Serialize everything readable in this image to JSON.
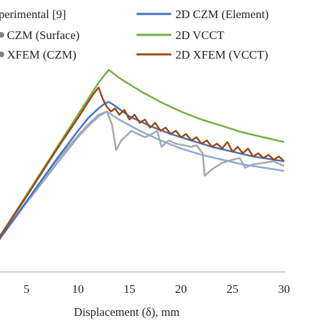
{
  "chart_data": {
    "type": "line",
    "title": "",
    "xlabel": "Displacement (δ), mm",
    "ylabel": "",
    "xlim": [
      0,
      30
    ],
    "x_ticks": [
      5,
      10,
      15,
      20,
      25,
      30
    ],
    "grid": false,
    "legend_position": "top",
    "series": [
      {
        "name": "perimental [9]",
        "color": "#a6a6a6",
        "points": [
          [
            0,
            0.0
          ],
          [
            2,
            0.17
          ],
          [
            5,
            0.44
          ],
          [
            8,
            0.7
          ],
          [
            10,
            0.85
          ],
          [
            11,
            0.92
          ],
          [
            12,
            0.98
          ],
          [
            12.8,
            1.0
          ],
          [
            13.3,
            0.92
          ],
          [
            13.7,
            0.76
          ],
          [
            14.2,
            0.82
          ],
          [
            15.2,
            0.88
          ],
          [
            15.8,
            0.86
          ],
          [
            16.5,
            0.84
          ],
          [
            17.2,
            0.86
          ],
          [
            17.7,
            0.88
          ],
          [
            18.1,
            0.78
          ],
          [
            18.8,
            0.82
          ],
          [
            19.5,
            0.8
          ],
          [
            20.3,
            0.79
          ],
          [
            21,
            0.78
          ],
          [
            21.5,
            0.79
          ],
          [
            22.1,
            0.74
          ],
          [
            22.3,
            0.6
          ],
          [
            23,
            0.64
          ],
          [
            24,
            0.68
          ],
          [
            25,
            0.7
          ],
          [
            25.7,
            0.71
          ],
          [
            26.2,
            0.65
          ],
          [
            27,
            0.67
          ],
          [
            28,
            0.68
          ],
          [
            29,
            0.69
          ],
          [
            30,
            0.66
          ]
        ]
      },
      {
        "name": "CZM (Surface)",
        "color": "#f0c02c",
        "dashed": true,
        "points": [
          [
            0,
            0.0
          ],
          [
            2,
            0.17
          ],
          [
            5,
            0.43
          ],
          [
            8,
            0.68
          ],
          [
            10,
            0.84
          ],
          [
            11,
            0.91
          ],
          [
            12,
            0.97
          ],
          [
            12.8,
            1.0
          ],
          [
            14,
            0.95
          ],
          [
            16,
            0.88
          ],
          [
            18,
            0.82
          ],
          [
            20,
            0.77
          ],
          [
            22,
            0.73
          ],
          [
            24,
            0.7
          ],
          [
            26,
            0.67
          ],
          [
            28,
            0.65
          ],
          [
            30,
            0.63
          ]
        ]
      },
      {
        "name": "XFEM (CZM)",
        "color": "#8eaadb",
        "points": [
          [
            0,
            0.0
          ],
          [
            2,
            0.17
          ],
          [
            5,
            0.43
          ],
          [
            8,
            0.68
          ],
          [
            10,
            0.84
          ],
          [
            11,
            0.91
          ],
          [
            12,
            0.97
          ],
          [
            12.8,
            1.0
          ],
          [
            14,
            0.95
          ],
          [
            16,
            0.88
          ],
          [
            18,
            0.82
          ],
          [
            20,
            0.77
          ],
          [
            22,
            0.73
          ],
          [
            24,
            0.7
          ],
          [
            26,
            0.67
          ],
          [
            28,
            0.65
          ],
          [
            30,
            0.63
          ]
        ]
      },
      {
        "name": "2D CZM (Element)",
        "color": "#4472c4",
        "points": [
          [
            0,
            0.0
          ],
          [
            2,
            0.17
          ],
          [
            5,
            0.44
          ],
          [
            8,
            0.71
          ],
          [
            10,
            0.88
          ],
          [
            11,
            0.96
          ],
          [
            12,
            1.02
          ],
          [
            12.6,
            1.05
          ],
          [
            13,
            1.06
          ],
          [
            13.5,
            1.04
          ],
          [
            15,
            0.97
          ],
          [
            17,
            0.91
          ],
          [
            19,
            0.86
          ],
          [
            21,
            0.82
          ],
          [
            23,
            0.78
          ],
          [
            25,
            0.75
          ],
          [
            27,
            0.72
          ],
          [
            29,
            0.7
          ],
          [
            30,
            0.69
          ]
        ]
      },
      {
        "name": "2D VCCT",
        "color": "#70ad47",
        "points": [
          [
            0,
            0.0
          ],
          [
            2,
            0.18
          ],
          [
            5,
            0.48
          ],
          [
            8,
            0.78
          ],
          [
            10,
            0.98
          ],
          [
            11,
            1.08
          ],
          [
            12,
            1.18
          ],
          [
            12.6,
            1.23
          ],
          [
            13,
            1.26
          ],
          [
            14,
            1.21
          ],
          [
            16,
            1.13
          ],
          [
            18,
            1.06
          ],
          [
            20,
            1.0
          ],
          [
            22,
            0.95
          ],
          [
            24,
            0.91
          ],
          [
            26,
            0.87
          ],
          [
            28,
            0.84
          ],
          [
            30,
            0.81
          ]
        ]
      },
      {
        "name": "2D XFEM (VCCT)",
        "color": "#9e480e",
        "points": [
          [
            0,
            0.0
          ],
          [
            2,
            0.18
          ],
          [
            5,
            0.47
          ],
          [
            8,
            0.77
          ],
          [
            10,
            0.96
          ],
          [
            11,
            1.06
          ],
          [
            11.5,
            1.11
          ],
          [
            12,
            1.15
          ],
          [
            12.4,
            1.08
          ],
          [
            12.8,
            1.03
          ],
          [
            13.2,
            1.0
          ],
          [
            13.6,
            1.02
          ],
          [
            14,
            0.98
          ],
          [
            14.5,
            1.01
          ],
          [
            15,
            0.95
          ],
          [
            15.5,
            0.98
          ],
          [
            16,
            0.93
          ],
          [
            16.5,
            0.95
          ],
          [
            17,
            0.9
          ],
          [
            17.5,
            0.93
          ],
          [
            18,
            0.88
          ],
          [
            18.5,
            0.9
          ],
          [
            19,
            0.86
          ],
          [
            19.5,
            0.88
          ],
          [
            20,
            0.84
          ],
          [
            20.5,
            0.86
          ],
          [
            21,
            0.82
          ],
          [
            21.5,
            0.84
          ],
          [
            22,
            0.8
          ],
          [
            22.5,
            0.82
          ],
          [
            23,
            0.78
          ],
          [
            23.5,
            0.8
          ],
          [
            24,
            0.77
          ],
          [
            24.5,
            0.81
          ],
          [
            25,
            0.75
          ],
          [
            25.5,
            0.78
          ],
          [
            26,
            0.74
          ],
          [
            26.5,
            0.77
          ],
          [
            27,
            0.72
          ],
          [
            27.5,
            0.74
          ],
          [
            28,
            0.71
          ],
          [
            28.5,
            0.73
          ],
          [
            29,
            0.7
          ],
          [
            29.5,
            0.72
          ],
          [
            30,
            0.69
          ]
        ]
      }
    ]
  },
  "colors": {
    "axis": "#bfbfbf",
    "text": "#222222"
  }
}
